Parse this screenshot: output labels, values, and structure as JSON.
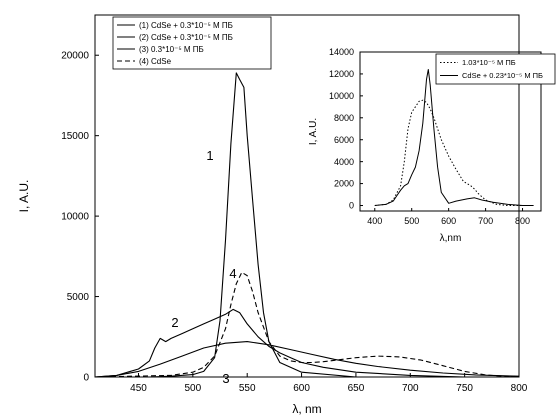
{
  "chart_data": [
    {
      "type": "line",
      "xlabel": "λ, nm",
      "ylabel": "I, A.U.",
      "xlim": [
        410,
        800
      ],
      "ylim": [
        0,
        22500
      ],
      "xticks": [
        450,
        500,
        550,
        600,
        650,
        700,
        750,
        800
      ],
      "yticks": [
        0,
        5000,
        10000,
        15000,
        20000
      ],
      "legend": {
        "placement": "top-left",
        "entries": [
          "(1) CdSe + 0.3*10⁻⁵ М ПБ",
          "(2) CdSe + 0.3*10⁻⁵ М ПБ",
          "(3) 0.3*10⁻⁵ М ПБ",
          "(4) CdSe"
        ]
      },
      "series": [
        {
          "label": "1",
          "style": "solid",
          "x": [
            410,
            460,
            480,
            500,
            510,
            520,
            525,
            530,
            535,
            540,
            543,
            547,
            550,
            555,
            560,
            565,
            570,
            580,
            600,
            650,
            700,
            800
          ],
          "y": [
            0,
            0,
            50,
            150,
            350,
            1200,
            3500,
            8500,
            14500,
            18900,
            18500,
            18000,
            15000,
            11000,
            7000,
            4000,
            2200,
            900,
            300,
            0,
            0,
            0
          ]
        },
        {
          "label": "2",
          "style": "solid",
          "x": [
            410,
            430,
            450,
            460,
            465,
            470,
            475,
            480,
            490,
            500,
            510,
            520,
            530,
            537,
            543,
            550,
            560,
            570,
            580,
            590,
            600,
            620,
            650,
            700,
            750,
            800
          ],
          "y": [
            0,
            100,
            500,
            1000,
            1800,
            2400,
            2200,
            2400,
            2700,
            3000,
            3300,
            3600,
            3900,
            4200,
            4000,
            3300,
            2500,
            1900,
            1500,
            1200,
            900,
            600,
            300,
            100,
            0,
            0
          ]
        },
        {
          "label": "3",
          "style": "solid",
          "x": [
            410,
            430,
            450,
            470,
            490,
            510,
            530,
            550,
            570,
            590,
            610,
            630,
            650,
            670,
            700,
            730,
            760,
            800
          ],
          "y": [
            0,
            100,
            350,
            800,
            1300,
            1800,
            2100,
            2200,
            2000,
            1700,
            1400,
            1100,
            850,
            650,
            420,
            250,
            130,
            50
          ]
        },
        {
          "label": "4",
          "style": "dashed",
          "x": [
            410,
            480,
            500,
            510,
            520,
            530,
            535,
            540,
            545,
            550,
            555,
            560,
            570,
            580,
            590,
            600,
            610,
            620,
            650,
            670,
            690,
            710,
            730,
            750,
            770,
            800
          ],
          "y": [
            0,
            100,
            300,
            600,
            1300,
            3000,
            4500,
            5800,
            6500,
            6300,
            5300,
            4000,
            2200,
            1300,
            1000,
            900,
            900,
            950,
            1200,
            1300,
            1250,
            1050,
            700,
            350,
            120,
            0
          ]
        }
      ]
    },
    {
      "type": "line",
      "xlabel": "λ,nm",
      "ylabel": "I, A.U.",
      "xlim": [
        360,
        850
      ],
      "ylim": [
        -500,
        14000
      ],
      "xticks": [
        400,
        500,
        600,
        700,
        800
      ],
      "yticks": [
        0,
        2000,
        4000,
        6000,
        8000,
        10000,
        12000,
        14000
      ],
      "legend": {
        "placement": "top-right",
        "entries": [
          "1.03*10⁻⁵ М ПБ",
          "CdSe + 0.23*10⁻⁵ М ПБ"
        ]
      },
      "series": [
        {
          "style": "dotted",
          "x": [
            400,
            430,
            450,
            470,
            480,
            490,
            500,
            510,
            520,
            530,
            540,
            550,
            560,
            570,
            580,
            600,
            620,
            640,
            660,
            670,
            680,
            700,
            730,
            760,
            800,
            830
          ],
          "y": [
            0,
            100,
            500,
            1800,
            4000,
            7000,
            8500,
            9000,
            9500,
            9600,
            9400,
            8800,
            8000,
            7000,
            6000,
            4500,
            3300,
            2200,
            1800,
            1500,
            1100,
            500,
            100,
            0,
            0,
            0
          ]
        },
        {
          "style": "solid",
          "x": [
            400,
            430,
            450,
            460,
            470,
            480,
            490,
            500,
            510,
            520,
            530,
            540,
            545,
            550,
            560,
            570,
            580,
            600,
            620,
            650,
            670,
            690,
            720,
            760,
            800,
            830
          ],
          "y": [
            0,
            100,
            400,
            900,
            1400,
            1800,
            2000,
            2800,
            3500,
            5000,
            7500,
            11500,
            12400,
            11000,
            7000,
            3500,
            1200,
            200,
            400,
            600,
            700,
            500,
            300,
            100,
            0,
            0
          ]
        }
      ]
    }
  ]
}
